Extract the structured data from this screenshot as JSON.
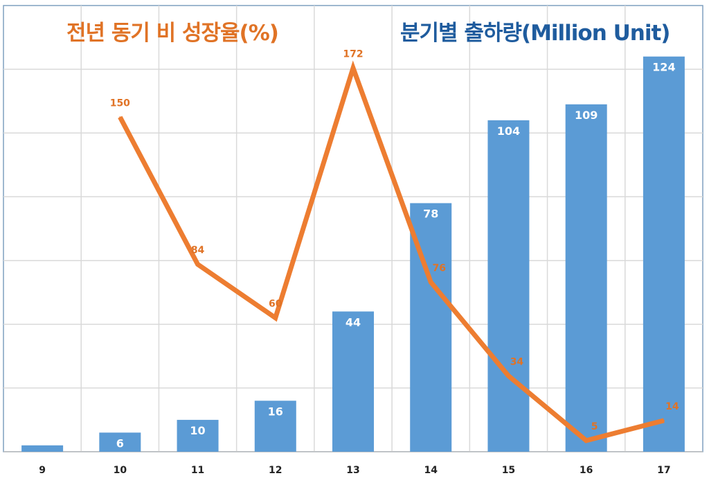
{
  "chart_data": {
    "type": "bar+line",
    "categories": [
      "9",
      "10",
      "11",
      "12",
      "13",
      "14",
      "15",
      "16",
      "17"
    ],
    "bar_series": {
      "title": "분기별 출하량(Million Unit)",
      "values": [
        2,
        6,
        10,
        16,
        44,
        78,
        104,
        109,
        124
      ],
      "labels": [
        "",
        "6",
        "10",
        "16",
        "44",
        "78",
        "104",
        "109",
        "124"
      ],
      "color": "#5B9BD5",
      "ylim": [
        0,
        140
      ],
      "grid_step": 20
    },
    "line_series": {
      "title": "전년 동기 비 성장율(%)",
      "values": [
        null,
        150,
        84,
        60,
        172,
        76,
        34,
        5,
        14
      ],
      "labels": [
        "",
        "150",
        "84",
        "60",
        "172",
        "76",
        "34",
        "5",
        "14"
      ],
      "color": "#ED7D31",
      "ylim": [
        0,
        200
      ]
    },
    "grid": true,
    "legend": "none"
  }
}
